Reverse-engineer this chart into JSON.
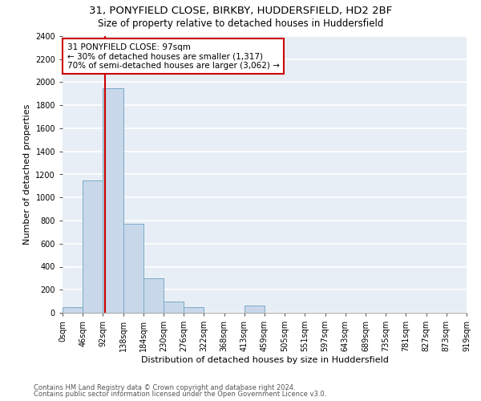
{
  "title1": "31, PONYFIELD CLOSE, BIRKBY, HUDDERSFIELD, HD2 2BF",
  "title2": "Size of property relative to detached houses in Huddersfield",
  "xlabel": "Distribution of detached houses by size in Huddersfield",
  "ylabel": "Number of detached properties",
  "footnote1": "Contains HM Land Registry data © Crown copyright and database right 2024.",
  "footnote2": "Contains public sector information licensed under the Open Government Licence v3.0.",
  "bin_labels": [
    "0sqm",
    "46sqm",
    "92sqm",
    "138sqm",
    "184sqm",
    "230sqm",
    "276sqm",
    "322sqm",
    "368sqm",
    "413sqm",
    "459sqm",
    "505sqm",
    "551sqm",
    "597sqm",
    "643sqm",
    "689sqm",
    "735sqm",
    "781sqm",
    "827sqm",
    "873sqm",
    "919sqm"
  ],
  "bar_values": [
    50,
    1150,
    1950,
    775,
    300,
    100,
    50,
    0,
    0,
    60,
    0,
    0,
    0,
    0,
    0,
    0,
    0,
    0,
    0,
    0
  ],
  "bar_color": "#c8d8ea",
  "bar_edge_color": "#7aaac8",
  "bg_color": "#e8eef5",
  "grid_color": "#ffffff",
  "annotation_box_text_line1": "31 PONYFIELD CLOSE: 97sqm",
  "annotation_box_text_line2": "← 30% of detached houses are smaller (1,317)",
  "annotation_box_text_line3": "70% of semi-detached houses are larger (3,062) →",
  "annotation_line_color": "#cc0000",
  "ylim": [
    0,
    2400
  ],
  "ytick_step": 200,
  "title_fontsize": 9.5,
  "subtitle_fontsize": 8.5,
  "axis_label_fontsize": 8,
  "tick_fontsize": 7,
  "annot_fontsize": 7.5,
  "footnote_fontsize": 6
}
